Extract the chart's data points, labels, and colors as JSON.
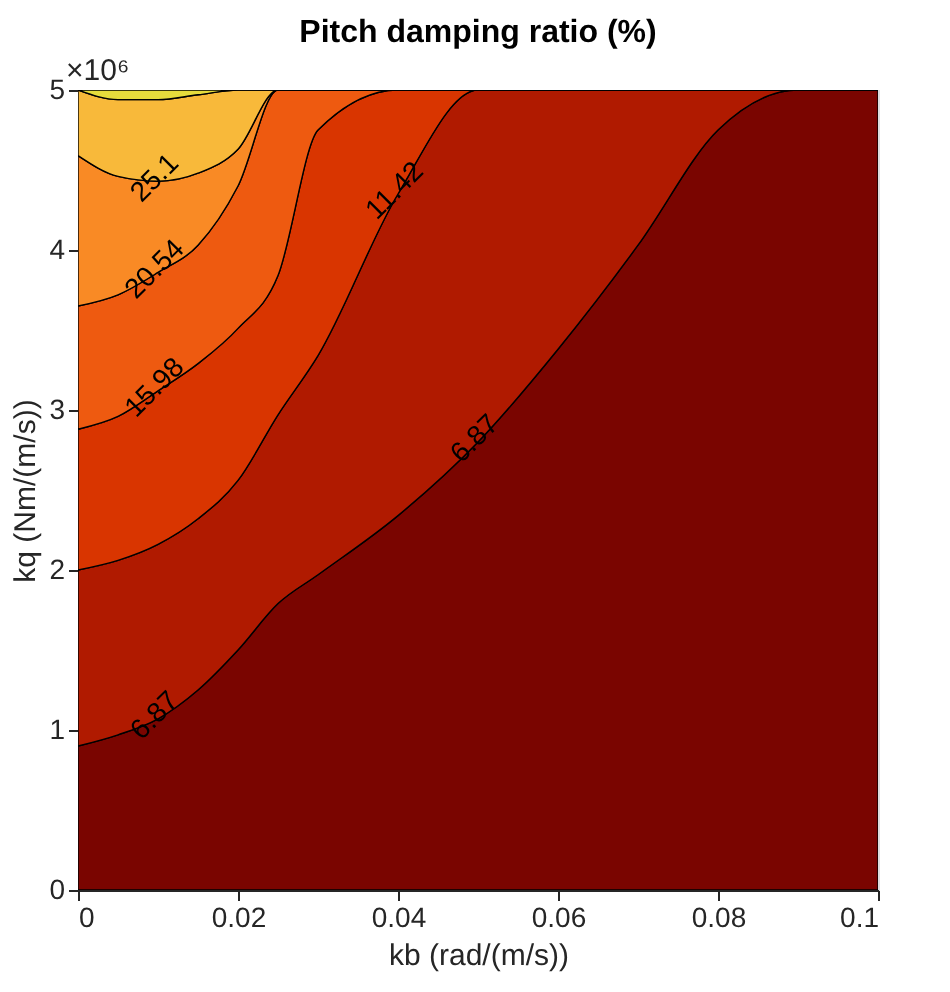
{
  "chart_data": {
    "type": "area",
    "title": "Pitch damping ratio (%)",
    "xlabel": "kb (rad/(m/s))",
    "ylabel": "kq (Nm/(m/s))",
    "xlim": [
      0,
      0.1
    ],
    "xticks": [
      0,
      0.02,
      0.04,
      0.06,
      0.08,
      0.1
    ],
    "ylim": [
      0,
      5
    ],
    "yticks": [
      0,
      1,
      2,
      3,
      4,
      5
    ],
    "stacked": true,
    "x": [
      0,
      0.005,
      0.01,
      0.015,
      0.02,
      0.025,
      0.03,
      0.04,
      0.05,
      0.06,
      0.07,
      0.08,
      0.09,
      0.1
    ],
    "series": [
      {
        "color": "#7a0500",
        "values": [
          0.9,
          0.97,
          1.07,
          1.25,
          1.5,
          1.79,
          1.97,
          2.34,
          2.8,
          3.38,
          4.03,
          4.75,
          5,
          5
        ]
      },
      {
        "color": "#b01a00",
        "values": [
          1.1,
          1.09,
          1.09,
          1.07,
          1.06,
          1.18,
          1.37,
          2.01,
          2.2,
          1.62,
          0.97,
          0.25,
          0,
          0
        ]
      },
      {
        "color": "#d93500",
        "values": [
          0.88,
          0.9,
          0.96,
          0.97,
          0.95,
          0.87,
          1.41,
          0.65,
          0,
          0,
          0,
          0,
          0,
          0
        ]
      },
      {
        "color": "#ee5a10",
        "values": [
          0.77,
          0.76,
          0.74,
          0.74,
          0.89,
          1.16,
          0.25,
          0,
          0,
          0,
          0,
          0,
          0,
          0
        ]
      },
      {
        "color": "#f98a25",
        "values": [
          0.94,
          0.74,
          0.57,
          0.45,
          0.23,
          0,
          0,
          0,
          0,
          0,
          0,
          0,
          0,
          0
        ]
      },
      {
        "color": "#f8b93a",
        "values": [
          0.41,
          0.48,
          0.51,
          0.49,
          0.37,
          0,
          0,
          0,
          0,
          0,
          0,
          0,
          0,
          0
        ]
      },
      {
        "color": "#e6dc3c",
        "values": [
          0,
          0.06,
          0.06,
          0.03,
          0,
          0,
          0,
          0,
          0,
          0,
          0,
          0,
          0,
          0
        ]
      }
    ],
    "annotations": [
      "×10⁶",
      {
        "text": "25.1",
        "x": 0.01,
        "y": 4.43
      },
      {
        "text": "20.54",
        "x": 0.01,
        "y": 3.86
      },
      {
        "text": "15.98",
        "x": 0.01,
        "y": 3.12
      },
      {
        "text": "11.42",
        "x": 0.04,
        "y": 4.35
      },
      {
        "text": "6.87",
        "x": 0.05,
        "y": 2.8
      },
      {
        "text": "6.87",
        "x": 0.01,
        "y": 1.07
      }
    ]
  }
}
